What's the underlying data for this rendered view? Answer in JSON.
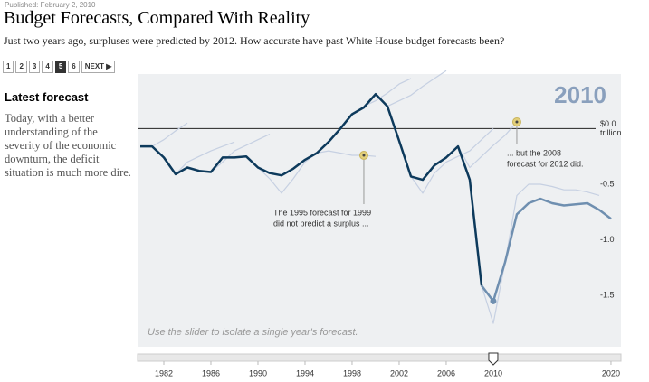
{
  "header": {
    "published": "Published: February 2, 2010",
    "title": "Budget Forecasts, Compared With Reality",
    "subtitle": "Just two years ago, surpluses were predicted by 2012. How accurate have past White House budget forecasts been?"
  },
  "pagination": {
    "pages": [
      "1",
      "2",
      "3",
      "4",
      "5",
      "6"
    ],
    "current": "5",
    "next": "NEXT"
  },
  "sidebar": {
    "heading": "Latest forecast",
    "text": "Today, with a better understanding of the severity of the economic downturn, the deficit situation is much more dire."
  },
  "chart_data": {
    "type": "line",
    "selected_year": "2010",
    "note": "Use the slider to isolate a single year's forecast.",
    "y_unit": "trillion",
    "xlim": [
      1979.77,
      2020.85
    ],
    "ylim": [
      -1.96,
      0.49
    ],
    "xticks": [
      1982,
      1986,
      1990,
      1994,
      1998,
      2002,
      2006,
      2010,
      2020
    ],
    "yticks": [
      {
        "value": 0,
        "label": "$0.0"
      },
      -0.5,
      {
        "value": -1,
        "label": "-1.0"
      },
      -1.5
    ],
    "actual": {
      "color": "#0d3a5c",
      "x": [
        1980,
        1981,
        1982,
        1983,
        1984,
        1985,
        1986,
        1987,
        1988,
        1989,
        1990,
        1991,
        1992,
        1993,
        1994,
        1995,
        1996,
        1997,
        1998,
        1999,
        2000,
        2001,
        2002,
        2003,
        2004,
        2005,
        2006,
        2007,
        2008,
        2009
      ],
      "values": [
        -0.16,
        -0.16,
        -0.26,
        -0.41,
        -0.35,
        -0.38,
        -0.39,
        -0.26,
        -0.26,
        -0.25,
        -0.35,
        -0.4,
        -0.42,
        -0.36,
        -0.28,
        -0.22,
        -0.12,
        0.0,
        0.13,
        0.19,
        0.31,
        0.2,
        -0.11,
        -0.43,
        -0.46,
        -0.33,
        -0.26,
        -0.16,
        -0.46,
        -1.41
      ]
    },
    "latest_forecast": {
      "color": "#6f8fb0",
      "x": [
        2009,
        2010,
        2011,
        2012,
        2013,
        2014,
        2015,
        2016,
        2017,
        2018,
        2019,
        2020
      ],
      "values": [
        -1.41,
        -1.55,
        -1.2,
        -0.77,
        -0.67,
        -0.63,
        -0.67,
        -0.69,
        -0.68,
        -0.67,
        -0.73,
        -0.81
      ]
    },
    "forecasts": [
      {
        "color": "#c6d0e2",
        "x": [
          1981,
          1982,
          1983,
          1984
        ],
        "values": [
          -0.16,
          -0.1,
          -0.02,
          0.05
        ]
      },
      {
        "color": "#c6d0e2",
        "x": [
          1983,
          1984,
          1985,
          1986,
          1987,
          1988
        ],
        "values": [
          -0.41,
          -0.3,
          -0.25,
          -0.2,
          -0.16,
          -0.12
        ]
      },
      {
        "color": "#c6d0e2",
        "x": [
          1986,
          1987,
          1988,
          1989,
          1990,
          1991
        ],
        "values": [
          -0.39,
          -0.3,
          -0.2,
          -0.15,
          -0.1,
          -0.05
        ]
      },
      {
        "color": "#c6d0e2",
        "x": [
          1990,
          1991,
          1992,
          1993,
          1994,
          1995
        ],
        "values": [
          -0.35,
          -0.45,
          -0.58,
          -0.45,
          -0.3,
          -0.22
        ]
      },
      {
        "color": "#c6d0e2",
        "x": [
          1995,
          1996,
          1997,
          1998,
          1999,
          2000
        ],
        "values": [
          -0.22,
          -0.2,
          -0.22,
          -0.24,
          -0.24,
          -0.25
        ]
      },
      {
        "color": "#c6d0e2",
        "x": [
          1998,
          1999,
          2000,
          2001,
          2002,
          2003
        ],
        "values": [
          0.13,
          0.2,
          0.25,
          0.32,
          0.4,
          0.45
        ]
      },
      {
        "color": "#c6d0e2",
        "x": [
          2001,
          2002,
          2003,
          2004,
          2005,
          2006
        ],
        "values": [
          0.2,
          0.25,
          0.3,
          0.38,
          0.45,
          0.52
        ]
      },
      {
        "color": "#c6d0e2",
        "x": [
          2003,
          2004,
          2005,
          2006,
          2007,
          2008,
          2009,
          2010
        ],
        "values": [
          -0.43,
          -0.58,
          -0.4,
          -0.3,
          -0.25,
          -0.2,
          -0.1,
          0.0
        ]
      },
      {
        "color": "#c6d0e2",
        "x": [
          2007,
          2008,
          2009,
          2010,
          2011,
          2012
        ],
        "values": [
          -0.16,
          -0.35,
          -0.25,
          -0.15,
          -0.06,
          0.06
        ]
      },
      {
        "color": "#c6d0e2",
        "x": [
          2009,
          2010,
          2011,
          2012,
          2013,
          2014,
          2015,
          2016,
          2017,
          2018,
          2019
        ],
        "values": [
          -1.41,
          -1.75,
          -1.2,
          -0.6,
          -0.5,
          -0.5,
          -0.52,
          -0.55,
          -0.55,
          -0.57,
          -0.6
        ]
      }
    ],
    "annotations": [
      {
        "lines": [
          "The 1995 forecast for 1999",
          "did not predict a surplus ..."
        ]
      },
      {
        "lines": [
          "... but the 2008",
          "forecast for 2012 did."
        ]
      }
    ]
  }
}
